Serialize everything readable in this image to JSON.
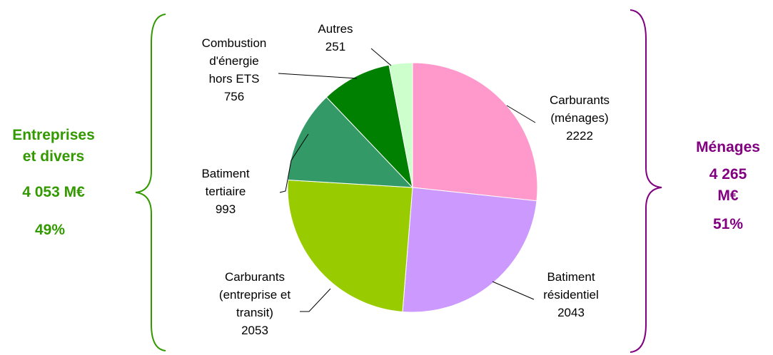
{
  "chart_data": {
    "type": "pie",
    "categories": [
      "Carburants\n(ménages)",
      "Batiment\nrésidentiel",
      "Carburants\n(entreprise et\ntransit)",
      "Batiment\ntertiaire",
      "Combustion\nd'énergie\nhors ETS",
      "Autres"
    ],
    "values": [
      2222,
      2043,
      2053,
      993,
      756,
      251
    ],
    "colors": [
      "#ff99cc",
      "#cc99ff",
      "#99cc00",
      "#339966",
      "#008000",
      "#ccffcc"
    ],
    "annotations": [
      {
        "lines": [
          "Entreprises\net divers",
          "4 053 M€",
          "49%"
        ],
        "color": "#339900"
      },
      {
        "lines": [
          "Ménages",
          "4 265 M€",
          "51%"
        ],
        "color": "#800080"
      }
    ]
  }
}
